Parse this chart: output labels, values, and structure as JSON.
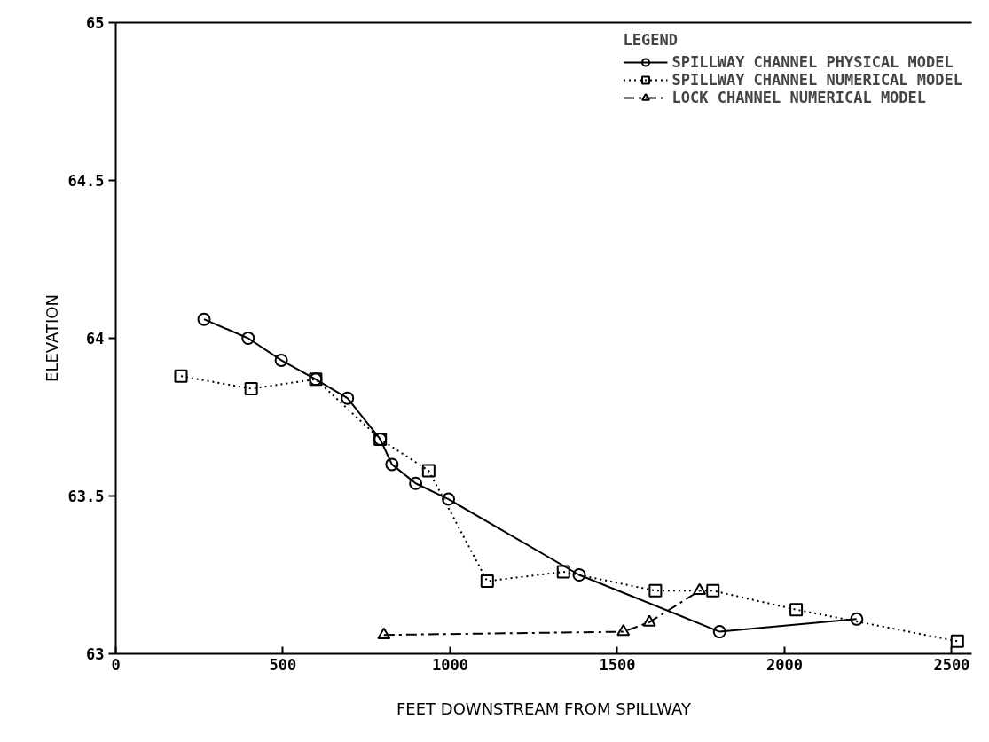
{
  "chart_data": {
    "type": "line",
    "xlabel": "FEET DOWNSTREAM FROM SPILLWAY",
    "ylabel": "ELEVATION",
    "legend_title": "LEGEND",
    "xlim": [
      0,
      2560
    ],
    "ylim": [
      63,
      65
    ],
    "xticks": [
      0,
      500,
      1000,
      1500,
      2000,
      2500
    ],
    "yticks": [
      63,
      63.5,
      64,
      64.5,
      65
    ],
    "grid": false,
    "legend": "top right",
    "series": [
      {
        "name": "SPILLWAY CHANNEL PHYSICAL MODEL",
        "color": "#000000",
        "marker": "circle",
        "line_style": "solid",
        "x": [
          264,
          396,
          495,
          598,
          693,
          791,
          826,
          897,
          995,
          1386,
          1806,
          2216
        ],
        "values": [
          64.06,
          64.0,
          63.93,
          63.87,
          63.81,
          63.68,
          63.6,
          63.54,
          63.49,
          63.25,
          63.07,
          63.11
        ]
      },
      {
        "name": "SPILLWAY CHANNEL NUMERICAL MODEL",
        "color": "#000000",
        "marker": "square",
        "line_style": "dotted",
        "x": [
          195,
          405,
          598,
          791,
          936,
          1111,
          1339,
          1614,
          1786,
          2035,
          2517
        ],
        "values": [
          63.88,
          63.84,
          63.87,
          63.68,
          63.58,
          63.23,
          63.26,
          63.2,
          63.2,
          63.14,
          63.04
        ]
      },
      {
        "name": "LOCK CHANNEL NUMERICAL MODEL",
        "color": "#000000",
        "marker": "triangle",
        "line_style": "dashed",
        "x": [
          802,
          1518,
          1596,
          1746
        ],
        "values": [
          63.06,
          63.07,
          63.1,
          63.2
        ]
      }
    ]
  }
}
